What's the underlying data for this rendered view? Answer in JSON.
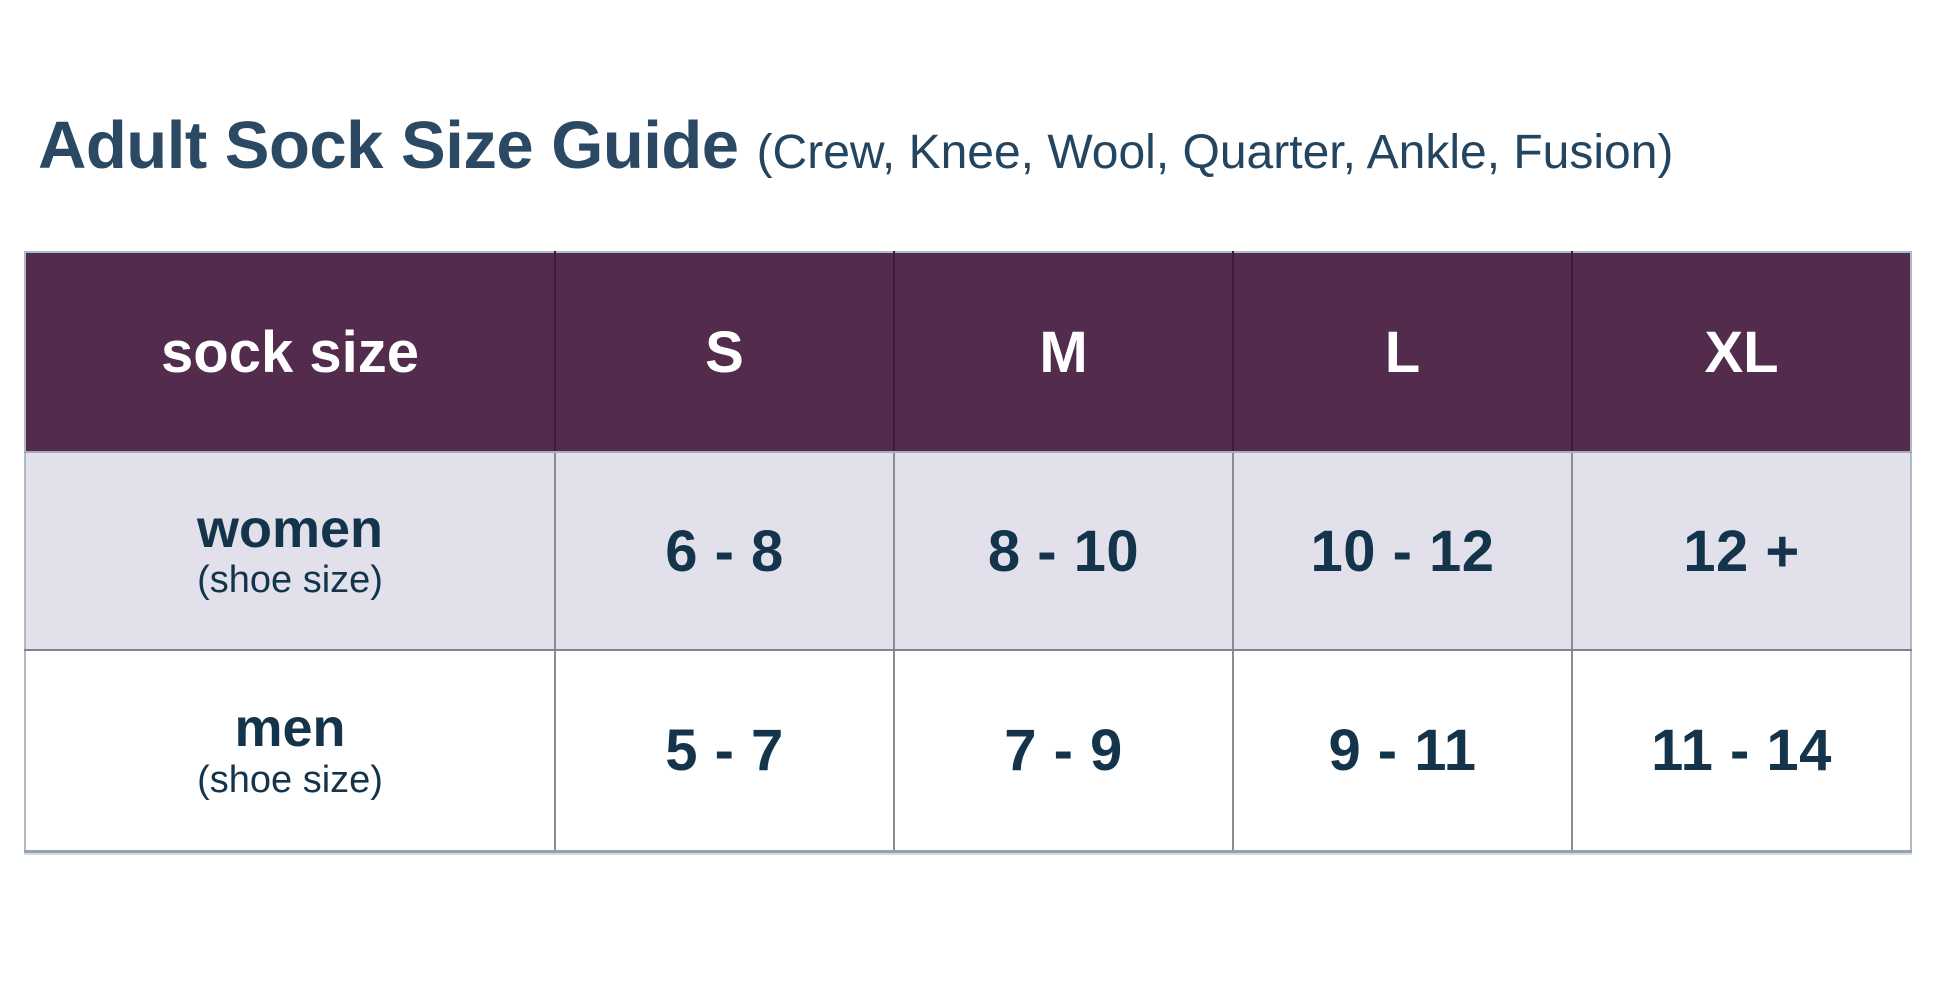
{
  "title": {
    "text": "Adult Sock Size Guide",
    "subtitle": "(Crew, Knee, Wool, Quarter, Ankle, Fusion)"
  },
  "table": {
    "columns": [
      "sock size",
      "S",
      "M",
      "L",
      "XL"
    ],
    "rows": [
      {
        "label": "women",
        "sublabel": "(shoe size)",
        "values": [
          "6 - 8",
          "8 - 10",
          "10 - 12",
          "12 +"
        ]
      },
      {
        "label": "men",
        "sublabel": "(shoe size)",
        "values": [
          "5 - 7",
          "7 - 9",
          "9 - 11",
          "11 - 14"
        ]
      }
    ]
  },
  "colors": {
    "header_background": "#532b4d",
    "header_text": "#ffffff",
    "alt_row_background": "#e2e1eb",
    "body_text": "#14344c",
    "title_text": "#2b4963"
  },
  "chart_data": {
    "type": "table",
    "title": "Adult Sock Size Guide",
    "subtitle": "(Crew, Knee, Wool, Quarter, Ankle, Fusion)",
    "columns": [
      "sock size",
      "S",
      "M",
      "L",
      "XL"
    ],
    "rows": [
      [
        "women (shoe size)",
        "6 - 8",
        "8 - 10",
        "10 - 12",
        "12 +"
      ],
      [
        "men (shoe size)",
        "5 - 7",
        "7 - 9",
        "9 - 11",
        "11 - 14"
      ]
    ],
    "legend_position": "none",
    "grid": true
  }
}
